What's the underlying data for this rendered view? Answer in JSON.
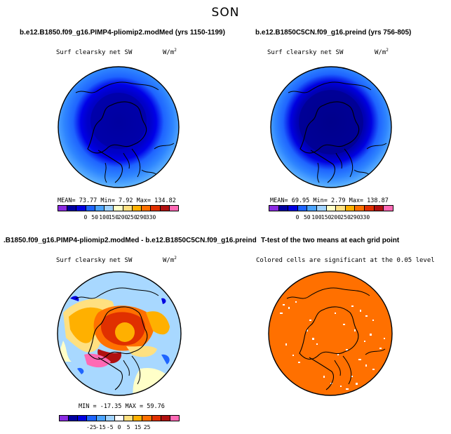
{
  "figure": {
    "title": "SON"
  },
  "panels": [
    {
      "title": "b.e12.B1850.f09_g16.PIMP4-pliomip2.modMed (yrs 1150-1199)",
      "variable": "Surf clearsky net SW",
      "units_base": "W/m",
      "units_exp": "2",
      "stats": "MEAN=  73.77  Min=    7.92  Max= 134.82",
      "colorbar": {
        "colors": [
          "#8a2be2",
          "#0000a0",
          "#0000e0",
          "#1e64ff",
          "#4ba3ff",
          "#a0d2ff",
          "#ffffc8",
          "#ffe080",
          "#ffb000",
          "#ff7000",
          "#e03000",
          "#b01010",
          "#ff69b4"
        ],
        "ticks": [
          "0",
          "50",
          "100",
          "150",
          "200",
          "250",
          "290",
          "330"
        ]
      },
      "field": "sw_control"
    },
    {
      "title": "b.e12.B1850C5CN.f09_g16.preind (yrs 756-805)",
      "variable": "Surf clearsky net SW",
      "units_base": "W/m",
      "units_exp": "2",
      "stats": "MEAN=  69.95  Min=    2.79  Max= 138.87",
      "colorbar": {
        "colors": [
          "#8a2be2",
          "#0000a0",
          "#0000e0",
          "#1e64ff",
          "#4ba3ff",
          "#a0d2ff",
          "#ffffc8",
          "#ffe080",
          "#ffb000",
          "#ff7000",
          "#e03000",
          "#b01010",
          "#ff69b4"
        ],
        "ticks": [
          "0",
          "50",
          "100",
          "150",
          "200",
          "250",
          "290",
          "330"
        ]
      },
      "field": "sw_preind"
    },
    {
      "title": ".B1850.f09_g16.PIMP4-pliomip2.modMed - b.e12.B1850C5CN.f09_g16.preind",
      "variable": "Surf clearsky net SW",
      "units_base": "W/m",
      "units_exp": "2",
      "stats": "MIN = -17.35 MAX =  59.76",
      "colorbar": {
        "colors": [
          "#8a2be2",
          "#0000a0",
          "#0000e0",
          "#1e64ff",
          "#4ba3ff",
          "#a0d2ff",
          "#ffffff",
          "#ffe080",
          "#ffb000",
          "#ff7000",
          "#e03000",
          "#b01010",
          "#ff69b4"
        ],
        "ticks": [
          "-25",
          "-15",
          "-5",
          "0",
          "5",
          "15",
          "25"
        ]
      },
      "field": "sw_diff"
    },
    {
      "title": "T-test of the two means at each grid point",
      "subtitle": "Colored cells are significant at the 0.05 level",
      "field": "ttest",
      "color": "#ff7000"
    }
  ]
}
